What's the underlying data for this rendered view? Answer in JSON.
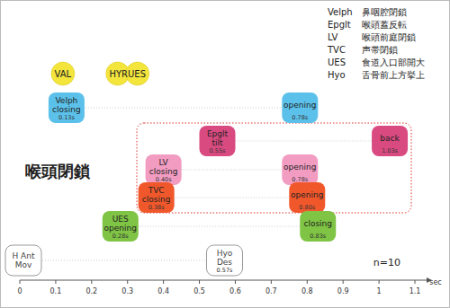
{
  "chart_data": {
    "type": "timeline",
    "xlim": [
      0,
      1.1
    ],
    "xticks": [
      0,
      0.1,
      0.2,
      0.3,
      0.4,
      0.5,
      0.6,
      0.7,
      0.8,
      0.9,
      1,
      1.1
    ],
    "x_label": "sec",
    "annotations": [
      "喉頭閉鎖",
      "n=10"
    ],
    "legend_items": [
      {
        "abbr": "Velph",
        "text": "鼻咽腔閉鎖"
      },
      {
        "abbr": "Epglt",
        "text": "喉頭蓋反転"
      },
      {
        "abbr": "LV",
        "text": "喉頭前庭閉鎖"
      },
      {
        "abbr": "TVC",
        "text": "声帯閉鎖"
      },
      {
        "abbr": "UES",
        "text": "食道入口部開大"
      },
      {
        "abbr": "Hyo",
        "text": "舌骨前上方挙上"
      }
    ],
    "markers": [
      {
        "label": "VAL",
        "x": 0.12,
        "color": "#f3e53c"
      },
      {
        "label": "HYRUES",
        "x": 0.3,
        "color": "#f3e53c"
      }
    ],
    "series": [
      {
        "name": "Velph",
        "color": "#5cc1ea",
        "labels": [
          "Velph\nclosing",
          "opening"
        ],
        "values": [
          0.13,
          0.78
        ],
        "value_labels": [
          "0.13s",
          "0.78s"
        ]
      },
      {
        "name": "Epglt",
        "color": "#d94a80",
        "labels": [
          "Epglt\ntilt",
          "back"
        ],
        "values": [
          0.55,
          1.03
        ],
        "value_labels": [
          "0.55s",
          "1.03s"
        ]
      },
      {
        "name": "LV",
        "color": "#f29cc2",
        "labels": [
          "LV\nclosing",
          "opening"
        ],
        "values": [
          0.4,
          0.78
        ],
        "value_labels": [
          "0.40s",
          "0.78s"
        ]
      },
      {
        "name": "TVC",
        "color": "#f0582c",
        "labels": [
          "TVC\nclosing",
          "opening"
        ],
        "values": [
          0.38,
          0.8
        ],
        "value_labels": [
          "0.38s",
          "0.80s"
        ]
      },
      {
        "name": "UES",
        "color": "#7fc444",
        "labels": [
          "UES\nopening",
          "closing"
        ],
        "values": [
          0.28,
          0.83
        ],
        "value_labels": [
          "0.28s",
          "0.83s"
        ]
      },
      {
        "name": "Hyo",
        "color": "#ffffff",
        "labels": [
          "H Ant\nMov",
          "Hyo\nDes"
        ],
        "values": [
          0.01,
          0.57
        ],
        "value_labels": [
          null,
          "0.57s"
        ]
      }
    ]
  }
}
